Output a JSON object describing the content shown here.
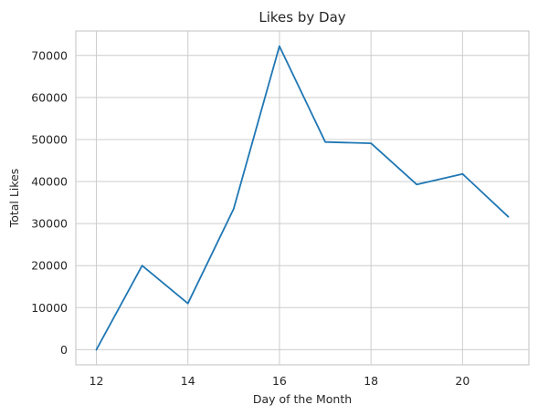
{
  "chart_data": {
    "type": "line",
    "title": "Likes by Day",
    "xlabel": "Day of the Month",
    "ylabel": "Total Likes",
    "x": [
      12,
      13,
      14,
      15,
      16,
      17,
      18,
      19,
      20,
      21
    ],
    "series": [
      {
        "values": [
          0,
          20000,
          11000,
          33500,
          72200,
          49400,
          49100,
          39300,
          41800,
          31600
        ]
      }
    ],
    "xlim": [
      11.55,
      21.45
    ],
    "ylim": [
      -3610,
      75810
    ],
    "xticks": [
      12,
      14,
      16,
      18,
      20
    ],
    "yticks": [
      0,
      10000,
      20000,
      30000,
      40000,
      50000,
      60000,
      70000
    ],
    "grid": true,
    "legend": "none",
    "colors": {
      "line": "#1f77b4",
      "grid": "#cccccc",
      "text": "#262626"
    }
  }
}
